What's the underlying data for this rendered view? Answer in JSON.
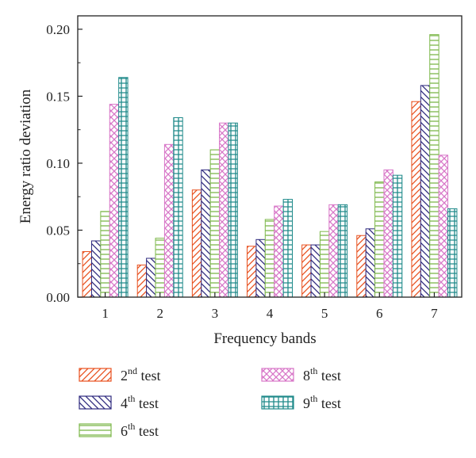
{
  "chart_data": {
    "type": "bar",
    "categories": [
      "1",
      "2",
      "3",
      "4",
      "5",
      "6",
      "7"
    ],
    "xlabel": "Frequency bands",
    "ylabel": "Energy ratio deviation",
    "ylim": [
      0,
      0.21
    ],
    "yticks": [
      "0.00",
      "0.05",
      "0.10",
      "0.15",
      "0.20"
    ],
    "ytick_values": [
      0,
      0.05,
      0.1,
      0.15,
      0.2
    ],
    "grid": false,
    "legend_position": "bottom",
    "series": [
      {
        "name_num": "2",
        "name_sup": "nd",
        "name_rest": " test",
        "color": "#e8501e",
        "pattern": "diagonal-up",
        "values": [
          0.034,
          0.024,
          0.08,
          0.038,
          0.039,
          0.046,
          0.146
        ]
      },
      {
        "name_num": "4",
        "name_sup": "th",
        "name_rest": " test",
        "color": "#2e2a7e",
        "pattern": "diagonal-down",
        "values": [
          0.042,
          0.029,
          0.095,
          0.043,
          0.039,
          0.051,
          0.158
        ]
      },
      {
        "name_num": "6",
        "name_sup": "th",
        "name_rest": " test",
        "color": "#7db84a",
        "pattern": "horizontal",
        "values": [
          0.064,
          0.044,
          0.11,
          0.058,
          0.049,
          0.086,
          0.196
        ]
      },
      {
        "name_num": "8",
        "name_sup": "th",
        "name_rest": " test",
        "color": "#d877c8",
        "pattern": "crosshatch",
        "values": [
          0.144,
          0.114,
          0.13,
          0.068,
          0.069,
          0.095,
          0.106
        ]
      },
      {
        "name_num": "9",
        "name_sup": "th",
        "name_rest": " test",
        "color": "#1f8a8a",
        "pattern": "grid",
        "values": [
          0.164,
          0.134,
          0.13,
          0.073,
          0.069,
          0.091,
          0.066
        ]
      }
    ]
  }
}
